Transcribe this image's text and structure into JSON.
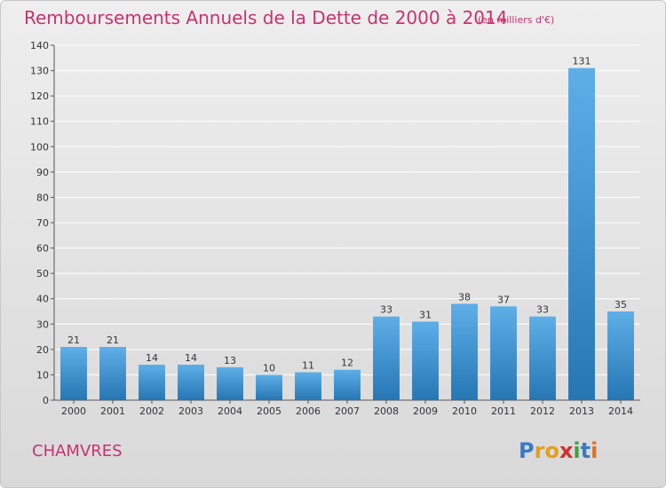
{
  "title": "Remboursements Annuels de la Dette de 2000 à 2014",
  "subtitle": "(en milliers d'€)",
  "commune": "CHAMVRES",
  "logo_text": "Proxiti",
  "colors": {
    "title": "#c8326e",
    "bar_light": "#5aaae6",
    "bar_dark": "#2a7ab8",
    "grid": "#ffffff"
  },
  "chart_data": {
    "type": "bar",
    "title": "Remboursements Annuels de la Dette de 2000 à 2014",
    "subtitle": "(en milliers d'€)",
    "categories": [
      "2000",
      "2001",
      "2002",
      "2003",
      "2004",
      "2005",
      "2006",
      "2007",
      "2008",
      "2009",
      "2010",
      "2011",
      "2012",
      "2013",
      "2014"
    ],
    "values": [
      21,
      21,
      14,
      14,
      13,
      10,
      11,
      12,
      33,
      31,
      38,
      37,
      33,
      131,
      35
    ],
    "ylim": [
      0,
      140
    ],
    "yticks": [
      0,
      10,
      20,
      30,
      40,
      50,
      60,
      70,
      80,
      90,
      100,
      110,
      120,
      130,
      140
    ],
    "grid": true
  }
}
